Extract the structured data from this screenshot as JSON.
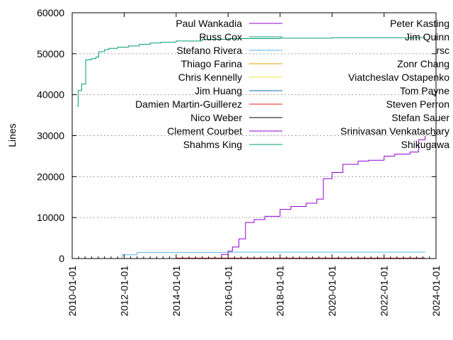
{
  "chart_data": {
    "type": "line",
    "title": "",
    "xlabel": "",
    "ylabel": "Lines",
    "x_type": "date",
    "xlim": [
      "2010-01-01",
      "2024-01-01"
    ],
    "ylim": [
      0,
      60000
    ],
    "x_ticks": [
      "2010-01-01",
      "2012-01-01",
      "2014-01-01",
      "2016-01-01",
      "2018-01-01",
      "2020-01-01",
      "2022-01-01",
      "2024-01-01"
    ],
    "y_ticks": [
      0,
      10000,
      20000,
      30000,
      40000,
      50000,
      60000
    ],
    "grid": "horizontal dotted",
    "legend_placement": "top, two columns",
    "series": [
      {
        "name": "Paul Wankadia",
        "color": "#9400d3",
        "points": []
      },
      {
        "name": "Russ Cox",
        "color": "#009e73",
        "points": [
          [
            "2010-03-10",
            37200
          ],
          [
            "2010-03-25",
            41000
          ],
          [
            "2010-05-15",
            42600
          ],
          [
            "2010-07-10",
            48500
          ],
          [
            "2010-10-01",
            48800
          ],
          [
            "2010-12-01",
            49200
          ],
          [
            "2011-01-10",
            50500
          ],
          [
            "2011-04-01",
            51000
          ],
          [
            "2011-06-01",
            51300
          ],
          [
            "2011-10-01",
            51600
          ],
          [
            "2012-03-01",
            51900
          ],
          [
            "2012-08-01",
            52300
          ],
          [
            "2013-01-01",
            52600
          ],
          [
            "2013-06-01",
            52800
          ],
          [
            "2014-01-01",
            53100
          ],
          [
            "2015-01-01",
            53500
          ],
          [
            "2016-01-01",
            53700
          ],
          [
            "2018-01-01",
            53800
          ],
          [
            "2020-01-01",
            53900
          ],
          [
            "2023-08-01",
            53900
          ]
        ]
      },
      {
        "name": "Stefano Rivera",
        "color": "#56b4e9",
        "points": [
          [
            "2010-03-10",
            0
          ],
          [
            "2011-12-01",
            0
          ],
          [
            "2011-12-02",
            900
          ],
          [
            "2012-06-01",
            950
          ],
          [
            "2012-07-01",
            1500
          ],
          [
            "2016-01-01",
            1550
          ],
          [
            "2023-08-01",
            1600
          ]
        ]
      },
      {
        "name": "Thiago Farina",
        "color": "#e69f00",
        "points": []
      },
      {
        "name": "Chris Kennelly",
        "color": "#f0e442",
        "points": []
      },
      {
        "name": "Jim Huang",
        "color": "#0072b2",
        "points": []
      },
      {
        "name": "Damien Martin-Guillerez",
        "color": "#e51e10",
        "points": [
          [
            "2014-01-01",
            100
          ],
          [
            "2023-08-01",
            150
          ]
        ]
      },
      {
        "name": "Nico Weber",
        "color": "#000000",
        "points": []
      },
      {
        "name": "Clement Courbet",
        "color": "#9400d3",
        "points": [
          [
            "2015-06-01",
            0
          ],
          [
            "2015-10-01",
            1000
          ],
          [
            "2016-01-01",
            1800
          ],
          [
            "2016-03-01",
            2800
          ],
          [
            "2016-06-01",
            4800
          ],
          [
            "2016-09-01",
            8800
          ],
          [
            "2017-01-01",
            9500
          ],
          [
            "2017-06-01",
            10300
          ],
          [
            "2018-01-01",
            12000
          ],
          [
            "2018-06-01",
            12700
          ],
          [
            "2019-01-01",
            13500
          ],
          [
            "2019-06-01",
            14500
          ],
          [
            "2019-09-01",
            19500
          ],
          [
            "2020-01-01",
            21000
          ],
          [
            "2020-06-01",
            23000
          ],
          [
            "2021-01-01",
            23800
          ],
          [
            "2021-06-01",
            24000
          ],
          [
            "2022-01-01",
            25000
          ],
          [
            "2022-06-01",
            25500
          ],
          [
            "2023-01-01",
            26000
          ],
          [
            "2023-05-01",
            29000
          ],
          [
            "2023-08-01",
            30000
          ]
        ]
      },
      {
        "name": "Shahms King",
        "color": "#009e73",
        "points": []
      },
      {
        "name": "Peter Kasting",
        "color": "#56b4e9",
        "points": []
      },
      {
        "name": "Jim Quinn",
        "color": "#e69f00",
        "points": []
      },
      {
        "name": "rsc",
        "color": "#f0e442",
        "points": []
      },
      {
        "name": "Zonr Chang",
        "color": "#0072b2",
        "points": []
      },
      {
        "name": "Viatcheslav Ostapenko",
        "color": "#e51e10",
        "points": []
      },
      {
        "name": "Tom Payne",
        "color": "#000000",
        "points": []
      },
      {
        "name": "Steven Perron",
        "color": "#9400d3",
        "points": []
      },
      {
        "name": "Stefan Sauer",
        "color": "#009e73",
        "points": []
      },
      {
        "name": "Srinivasan Venkatachary",
        "color": "#56b4e9",
        "points": []
      },
      {
        "name": "Shikugawa",
        "color": "#e69f00",
        "points": []
      }
    ]
  }
}
